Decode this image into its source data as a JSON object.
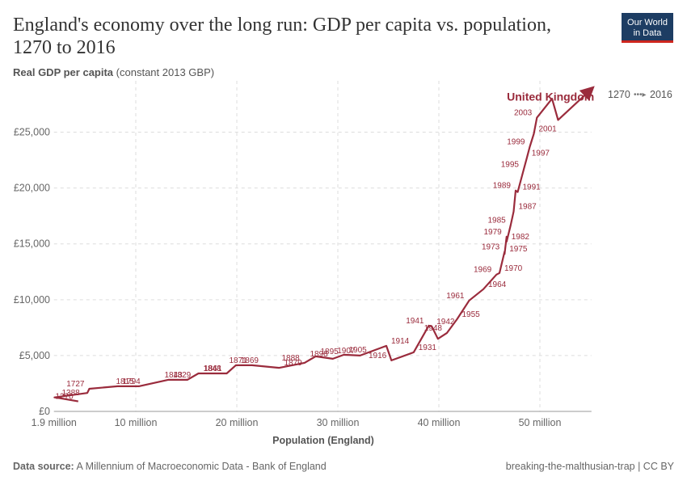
{
  "chart_data": {
    "type": "connected-scatter",
    "title_lines": [
      "England's economy over the long run: GDP per capita vs. population,",
      "1270 to 2016"
    ],
    "y_label_bold": "Real GDP per capita",
    "y_label_rest": "(constant 2013 GBP)",
    "x_label": "Population (England)",
    "time_range": [
      1270,
      2016
    ],
    "source_bold": "Data source:",
    "source_rest": "A Millennium of Macroeconomic Data - Bank of England",
    "footer_right": "breaking-the-malthusian-trap | CC BY",
    "logo": [
      "Our World",
      "in Data"
    ],
    "xlim": [
      1900000,
      55100000
    ],
    "xticks": [
      {
        "value": 1900000,
        "label": "1.9 million"
      },
      {
        "value": 10000000,
        "label": "10 million"
      },
      {
        "value": 20000000,
        "label": "20 million"
      },
      {
        "value": 30000000,
        "label": "30 million"
      },
      {
        "value": 40000000,
        "label": "40 million"
      },
      {
        "value": 50000000,
        "label": "50 million"
      }
    ],
    "ylim": [
      0,
      29600
    ],
    "yticks": [
      {
        "value": 0,
        "label": "£0"
      },
      {
        "value": 5000,
        "label": "£5,000"
      },
      {
        "value": 10000,
        "label": "£10,000"
      },
      {
        "value": 15000,
        "label": "£15,000"
      },
      {
        "value": 20000,
        "label": "£20,000"
      },
      {
        "value": 25000,
        "label": "£25,000"
      }
    ],
    "grid": true,
    "series": [
      {
        "name": "United Kingdom",
        "color": "#9a2b3c",
        "labels": [
          1270,
          1388,
          null,
          null,
          1727,
          1794,
          1815,
          1829,
          1843,
          1848,
          1861,
          1869,
          1871,
          1879,
          1888,
          1895,
          1898,
          1905,
          1907,
          1914,
          1916,
          1931,
          1941,
          1942,
          null,
          1948,
          1955,
          1961,
          1964,
          1969,
          1970,
          1973,
          1975,
          1979,
          1982,
          1985,
          1987,
          1989,
          1991,
          1995,
          1997,
          1999,
          2001,
          2003,
          null,
          null,
          null
        ],
        "x": [
          4300000,
          2200000,
          1950000,
          5200000,
          5400000,
          8200000,
          10300000,
          13200000,
          15100000,
          16200000,
          19000000,
          19900000,
          21500000,
          24200000,
          26700000,
          27800000,
          29500000,
          30600000,
          32200000,
          34800000,
          35300000,
          37500000,
          39000000,
          39300000,
          39900000,
          40800000,
          41800000,
          43000000,
          44400000,
          45700000,
          46000000,
          46500000,
          46500000,
          46700000,
          46700000,
          47100000,
          47400000,
          47600000,
          47800000,
          48400000,
          48700000,
          49000000,
          49400000,
          49700000,
          51200000,
          51800000,
          54900000
        ],
        "values": [
          900,
          1230,
          1250,
          1650,
          2030,
          2250,
          2250,
          2830,
          2830,
          3400,
          3400,
          4130,
          4130,
          3900,
          4350,
          4930,
          4710,
          5070,
          5000,
          5870,
          4570,
          5290,
          7680,
          7600,
          6500,
          7030,
          8260,
          9930,
          10940,
          12250,
          12390,
          14300,
          14100,
          15650,
          15200,
          16670,
          17900,
          19780,
          19640,
          21670,
          22680,
          23700,
          24860,
          26300,
          28000,
          26100,
          28700
        ]
      }
    ]
  }
}
